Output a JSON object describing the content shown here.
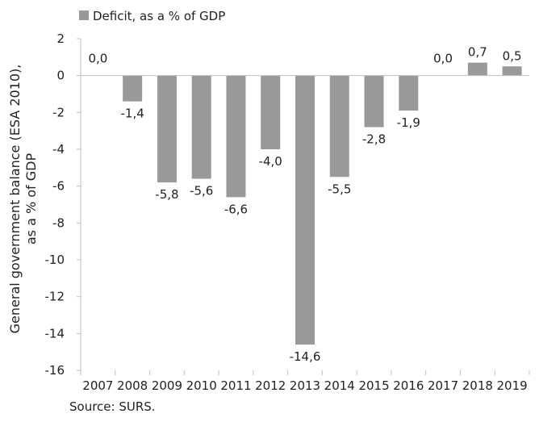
{
  "chart_data": {
    "type": "bar",
    "title": "",
    "categories": [
      "2007",
      "2008",
      "2009",
      "2010",
      "2011",
      "2012",
      "2013",
      "2014",
      "2015",
      "2016",
      "2017",
      "2018",
      "2019"
    ],
    "series": [
      {
        "name": "Deficit, as a % of GDP",
        "values": [
          0.0,
          -1.4,
          -5.8,
          -5.6,
          -6.6,
          -4.0,
          -14.6,
          -5.5,
          -2.8,
          -1.9,
          0.0,
          0.7,
          0.5
        ],
        "data_labels": [
          "0,0",
          "-1,4",
          "-5,8",
          "-5,6",
          "-6,6",
          "-4,0",
          "-14,6",
          "-5,5",
          "-2,8",
          "-1,9",
          "0,0",
          "0,7",
          "0,5"
        ],
        "color": "#999999"
      }
    ],
    "ylabel_lines": [
      "General government balance (ESA 2010),",
      "as a % of GDP"
    ],
    "xlabel": "",
    "ylim": [
      -16,
      2
    ],
    "yticks": [
      2,
      0,
      -2,
      -4,
      -6,
      -8,
      -10,
      -12,
      -14,
      -16
    ],
    "grid": false,
    "legend": {
      "position": "top-left"
    },
    "source": "Source: SURS.",
    "axis_color": "#bfbfbf"
  }
}
